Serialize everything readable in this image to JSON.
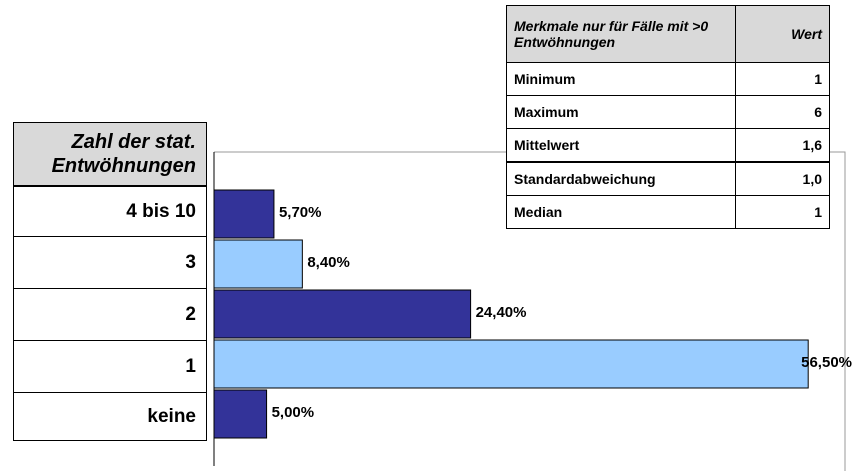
{
  "chart_data": {
    "type": "bar",
    "orientation": "horizontal",
    "category_header": "Zahl der stat. Entwöhnungen",
    "categories": [
      "4 bis 10",
      "3",
      "2",
      "1",
      "keine"
    ],
    "values": [
      5.7,
      8.4,
      24.4,
      56.5,
      5.0
    ],
    "value_labels": [
      "5,70%",
      "8,40%",
      "24,40%",
      "56,50%",
      "5,00%"
    ],
    "colors": [
      "#333399",
      "#99ccff",
      "#333399",
      "#99ccff",
      "#333399"
    ],
    "xlim": [
      0,
      60
    ]
  },
  "stats_table": {
    "header": [
      "Merkmale nur für Fälle mit >0 Entwöhnungen",
      "Wert"
    ],
    "rows": [
      [
        "Minimum",
        "1"
      ],
      [
        "Maximum",
        "6"
      ],
      [
        "Mittelwert",
        "1,6"
      ],
      [
        "Standardabweichung",
        "1,0"
      ],
      [
        "Median",
        "1"
      ]
    ]
  }
}
